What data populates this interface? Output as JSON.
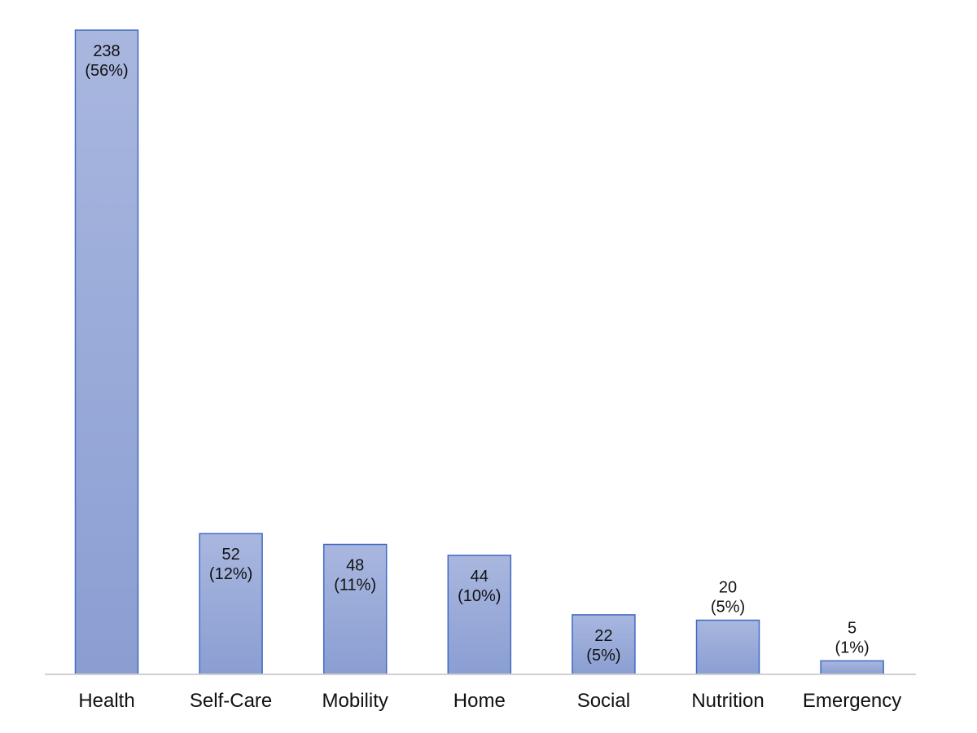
{
  "chart_data": {
    "type": "bar",
    "categories": [
      "Health",
      "Self-Care",
      "Mobility",
      "Home",
      "Social",
      "Nutrition",
      "Emergency"
    ],
    "values": [
      238,
      52,
      48,
      44,
      22,
      20,
      5
    ],
    "data_labels": [
      [
        "238",
        "(56%)"
      ],
      [
        "52",
        "(12%)"
      ],
      [
        "48",
        "(11%)"
      ],
      [
        "44",
        "(10%)"
      ],
      [
        "22",
        "(5%)"
      ],
      [
        "20",
        "(5%)"
      ],
      [
        "5",
        "(1%)"
      ]
    ],
    "title": "",
    "xlabel": "",
    "ylabel": "",
    "ylim": [
      0,
      238
    ],
    "grid": false,
    "legend": "none",
    "colors": {
      "bar_top": "#a9b7df",
      "bar_bottom": "#8a9ed2",
      "bar_edge": "#4169c2",
      "baseline": "#d0d0d0",
      "text": "#111111"
    }
  }
}
